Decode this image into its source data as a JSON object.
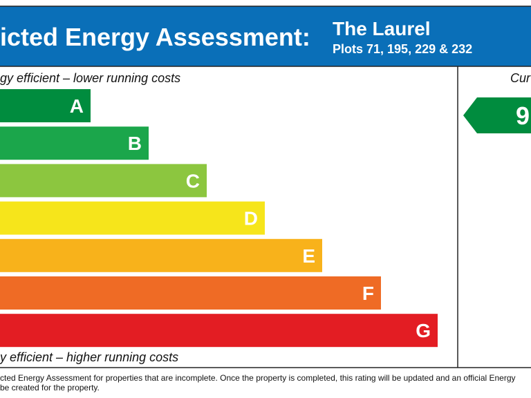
{
  "header": {
    "title": "icted Energy Assessment:",
    "property": "The Laurel",
    "plots": "Plots 71, 195, 229 & 232"
  },
  "scale": {
    "top_label": "gy efficient – lower running costs",
    "bottom_label": "y efficient – higher running costs",
    "bands": [
      "A",
      "B",
      "C",
      "D",
      "E",
      "F",
      "G"
    ]
  },
  "current": {
    "heading": "Cur",
    "rating": "9"
  },
  "footer": {
    "lines": [
      "cted Energy Assessment for properties that are incomplete. Once the property is completed, this rating will be updated and an official Energy",
      "be created for the property."
    ]
  }
}
